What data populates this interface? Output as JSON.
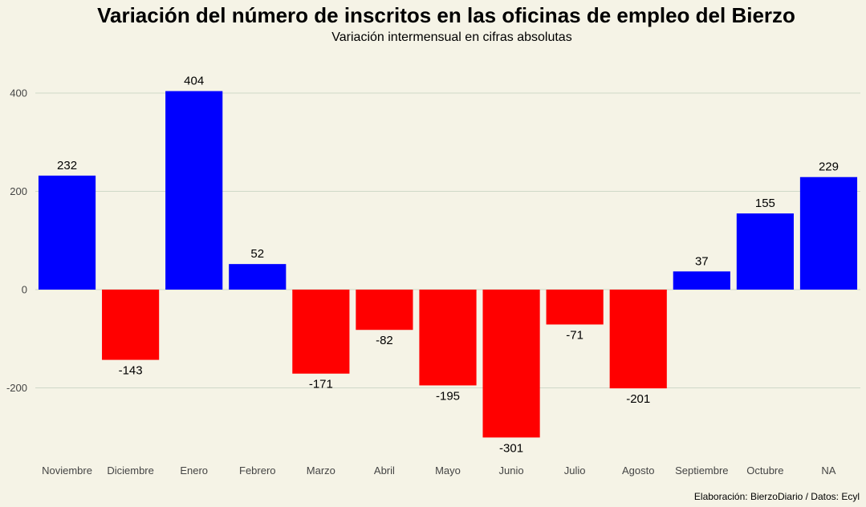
{
  "chart_data": {
    "type": "bar",
    "title": "Variación del número de inscritos en las oficinas de empleo del Bierzo",
    "subtitle": "Variación intermensual en cifras absolutas",
    "caption": "Elaboración: BierzoDiario / Datos: Ecyl",
    "xlabel": "",
    "ylabel": "",
    "categories": [
      "Noviembre",
      "Diciembre",
      "Enero",
      "Febrero",
      "Marzo",
      "Abril",
      "Mayo",
      "Junio",
      "Julio",
      "Agosto",
      "Septiembre",
      "Octubre",
      "NA"
    ],
    "values": [
      232,
      -143,
      404,
      52,
      -171,
      -82,
      -195,
      -301,
      -71,
      -201,
      37,
      155,
      229
    ],
    "value_labels": [
      "232",
      "-143",
      "404",
      "52",
      "-171",
      "-82",
      "-195",
      "-301",
      "-71",
      "-201",
      "37",
      "155",
      "229"
    ],
    "ylim": [
      -320,
      440
    ],
    "y_ticks": [
      -200,
      0,
      200,
      400
    ],
    "y_tick_labels": [
      "-200",
      "0",
      "200",
      "400"
    ],
    "grid": true,
    "legend": "none",
    "colors": {
      "positive": "#0000ff",
      "negative": "#ff0000",
      "background": "#f5f3e6",
      "grid": "#cfd8c8"
    }
  }
}
